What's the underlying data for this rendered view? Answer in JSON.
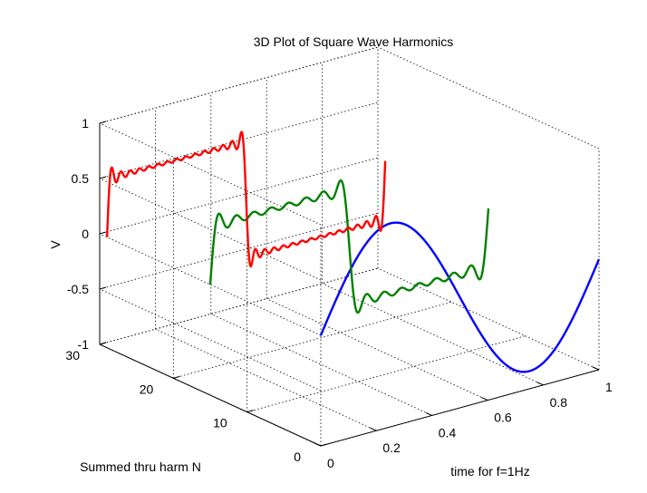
{
  "chart_data": {
    "type": "line",
    "plot_style": "3d",
    "title": "3D Plot of Square Wave Harmonics",
    "xlabel": "time for f=1Hz",
    "ylabel": "Summed thru harm N",
    "zlabel": "V",
    "xlim": [
      0,
      1
    ],
    "ylim": [
      0,
      30
    ],
    "zlim": [
      -1,
      1
    ],
    "xticks": [
      "0",
      "0.2",
      "0.4",
      "0.6",
      "0.8",
      "1"
    ],
    "xtick_values": [
      0,
      0.2,
      0.4,
      0.6,
      0.8,
      1
    ],
    "yticks": [
      "0",
      "10",
      "20",
      "30"
    ],
    "ytick_values": [
      0,
      10,
      20,
      30
    ],
    "zticks": [
      "-1",
      "-0.5",
      "0",
      "0.5",
      "1"
    ],
    "ztick_values": [
      -1,
      -0.5,
      0,
      0.5,
      1
    ],
    "grid": true,
    "series": [
      {
        "harmonics": 1,
        "color": "#0000ff",
        "x_range": [
          0,
          1
        ],
        "amplitude": 1.27
      },
      {
        "harmonics": 15,
        "color": "#008000",
        "x_range": [
          0,
          1
        ]
      },
      {
        "harmonics": 29,
        "color": "#ff0000",
        "x_range": [
          0,
          1
        ]
      }
    ]
  }
}
